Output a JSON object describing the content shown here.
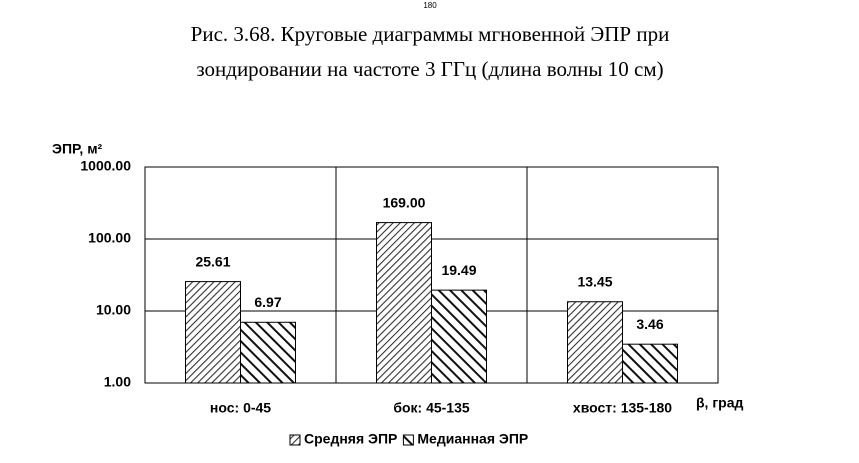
{
  "page": {
    "page_number": "180",
    "caption": [
      "Рис. 3.68. Круговые диаграммы мгновенной ЭПР при",
      "зондировании на частоте 3 ГГц (длина волны 10 см)"
    ]
  },
  "chart_data": {
    "type": "bar",
    "y_label": "ЭПР, м²",
    "x_label": "β, град",
    "categories": [
      "нос:  0-45",
      "бок: 45-135",
      "хвост: 135-180"
    ],
    "series": [
      {
        "name": "Средняя ЭПР",
        "color": "#333333",
        "values": [
          25.61,
          169,
          13.45
        ],
        "value_labels": [
          "25.61",
          "169.00",
          "13.45"
        ]
      },
      {
        "name": "Медианная ЭПР",
        "color": "#111111",
        "values": [
          6.97,
          19.49,
          3.46
        ],
        "value_labels": [
          "6.97",
          "19.49",
          "3.46"
        ]
      }
    ],
    "ylim": [
      1,
      1000
    ],
    "log_y": true,
    "yticks": [
      {
        "value": 1,
        "label": "1.00"
      },
      {
        "value": 10,
        "label": "10.00"
      },
      {
        "value": 100,
        "label": "100.00"
      },
      {
        "value": 1000,
        "label": "1000.00"
      }
    ],
    "grid": true,
    "legend": "bottom"
  }
}
